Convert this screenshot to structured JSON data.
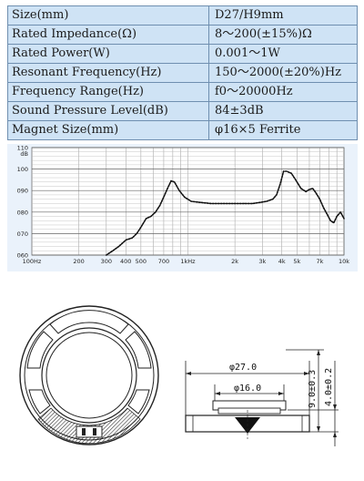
{
  "specs": [
    {
      "label": "Size(mm)",
      "value": "D27/H9mm"
    },
    {
      "label": "Rated Impedance(Ω)",
      "value": "8～200(±15%)Ω"
    },
    {
      "label": "Rated Power(W)",
      "value": "0.001～1W"
    },
    {
      "label": "Resonant Frequency(Hz)",
      "value": "150～2000(±20%)Hz"
    },
    {
      "label": "Frequency Range(Hz)",
      "value": "f0～20000Hz"
    },
    {
      "label": "Sound Pressure Level(dB)",
      "value": "84±3dB"
    },
    {
      "label": "Magnet Size(mm)",
      "value": "φ16×5 Ferrite"
    }
  ],
  "chart_data": {
    "type": "line",
    "ylabel": "dB",
    "ylim": [
      60,
      110
    ],
    "yticks": [
      60,
      70,
      80,
      90,
      100,
      110
    ],
    "ytick_labels": [
      "060",
      "070",
      "080",
      "090",
      "100",
      "110"
    ],
    "xlim": [
      100,
      10000
    ],
    "xscale": "log",
    "xticks": [
      100,
      200,
      300,
      400,
      500,
      700,
      1000,
      2000,
      3000,
      4000,
      5000,
      7000,
      10000
    ],
    "xtick_labels": [
      "100Hz",
      "200",
      "300",
      "400",
      "500",
      "700",
      "1kHz",
      "2k",
      "3k",
      "4k",
      "5k",
      "7k",
      "10k"
    ],
    "grid": true,
    "line_style": "dotted",
    "series": [
      {
        "x": [
          300,
          330,
          360,
          400,
          440,
          470,
          500,
          540,
          580,
          620,
          660,
          700,
          740,
          780,
          820,
          880,
          950,
          1050,
          1200,
          1400,
          1700,
          2000,
          2300,
          2600,
          2900,
          3200,
          3500,
          3700,
          3900,
          4100,
          4300,
          4600,
          4900,
          5300,
          5700,
          6000,
          6300,
          6600,
          7000,
          7400,
          7800,
          8200,
          8600,
          9000,
          9500,
          10000
        ],
        "y": [
          60,
          62,
          64,
          67,
          68,
          70,
          73,
          77,
          78,
          80,
          83,
          87,
          91,
          94.5,
          94,
          90,
          87,
          85,
          84.5,
          84,
          84,
          84,
          84,
          84,
          84.5,
          85,
          86,
          88,
          93,
          99,
          99,
          98,
          95,
          91,
          89.5,
          90.5,
          91,
          89,
          86,
          82,
          79,
          76,
          75,
          78,
          80,
          77
        ]
      }
    ]
  },
  "drawing": {
    "outer_dia": "φ27.0",
    "inner_dia": "φ16.0",
    "height": "9.0±0.3",
    "magnet_height": "4.0±0.2"
  }
}
